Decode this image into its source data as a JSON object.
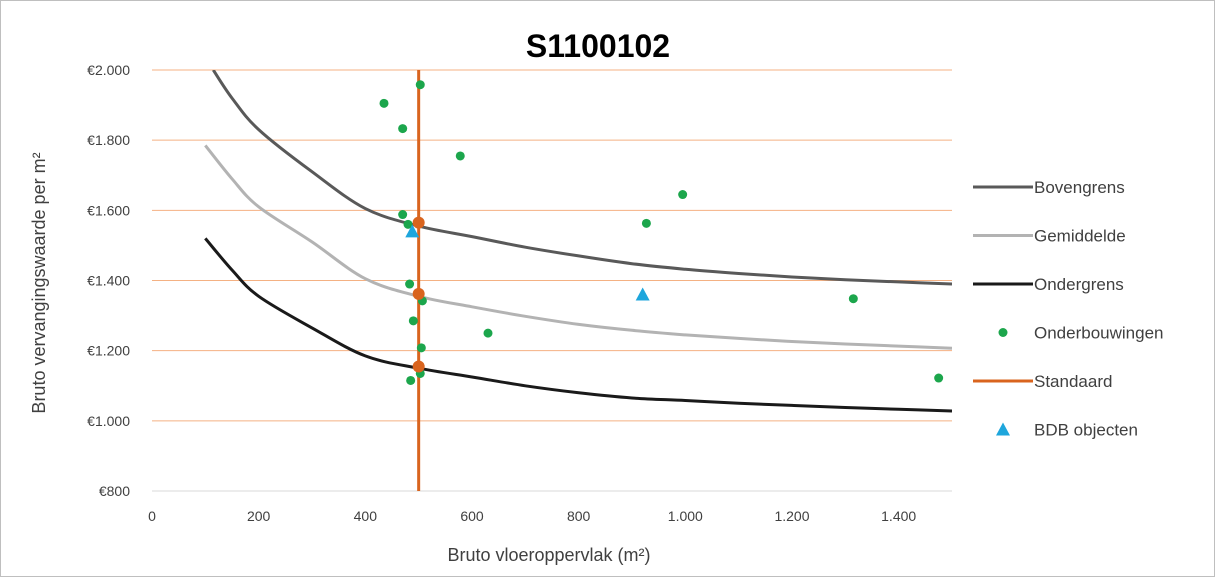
{
  "chart_data": {
    "type": "scatter",
    "title": "S1100102",
    "xlabel": "Bruto vloeroppervlak (m²)",
    "ylabel": "Bruto vervangingswaarde per m²",
    "xlim": [
      0,
      1500
    ],
    "ylim": [
      800,
      2000
    ],
    "x_ticks": [
      0,
      200,
      400,
      600,
      800,
      1000,
      1200,
      1400
    ],
    "x_tick_labels": [
      "0",
      "200",
      "400",
      "600",
      "800",
      "1.000",
      "1.200",
      "1.400"
    ],
    "y_ticks": [
      800,
      1000,
      1200,
      1400,
      1600,
      1800,
      2000
    ],
    "y_tick_labels": [
      "€800",
      "€1.000",
      "€1.200",
      "€1.400",
      "€1.600",
      "€1.800",
      "€2.000"
    ],
    "grid": "horizontal",
    "legend_position": "right",
    "series": [
      {
        "name": "Bovengrens",
        "kind": "line",
        "color": "#595959",
        "points": [
          [
            115,
            2000
          ],
          [
            150,
            1920
          ],
          [
            200,
            1830
          ],
          [
            300,
            1710
          ],
          [
            400,
            1605
          ],
          [
            500,
            1555
          ],
          [
            600,
            1525
          ],
          [
            700,
            1495
          ],
          [
            800,
            1470
          ],
          [
            900,
            1448
          ],
          [
            1000,
            1432
          ],
          [
            1100,
            1420
          ],
          [
            1200,
            1410
          ],
          [
            1300,
            1402
          ],
          [
            1400,
            1396
          ],
          [
            1500,
            1390
          ]
        ]
      },
      {
        "name": "Gemiddelde",
        "kind": "line",
        "color": "#b3b3b3",
        "points": [
          [
            100,
            1785
          ],
          [
            150,
            1690
          ],
          [
            200,
            1610
          ],
          [
            300,
            1510
          ],
          [
            400,
            1405
          ],
          [
            500,
            1355
          ],
          [
            600,
            1325
          ],
          [
            700,
            1298
          ],
          [
            800,
            1275
          ],
          [
            900,
            1258
          ],
          [
            1000,
            1245
          ],
          [
            1100,
            1235
          ],
          [
            1200,
            1226
          ],
          [
            1300,
            1219
          ],
          [
            1400,
            1213
          ],
          [
            1500,
            1207
          ]
        ]
      },
      {
        "name": "Ondergrens",
        "kind": "line",
        "color": "#1a1a1a",
        "points": [
          [
            100,
            1520
          ],
          [
            150,
            1430
          ],
          [
            200,
            1355
          ],
          [
            300,
            1265
          ],
          [
            400,
            1185
          ],
          [
            500,
            1150
          ],
          [
            600,
            1125
          ],
          [
            700,
            1100
          ],
          [
            800,
            1080
          ],
          [
            900,
            1065
          ],
          [
            1000,
            1058
          ],
          [
            1100,
            1050
          ],
          [
            1200,
            1044
          ],
          [
            1300,
            1038
          ],
          [
            1400,
            1033
          ],
          [
            1500,
            1028
          ]
        ]
      },
      {
        "name": "Onderbouwingen",
        "kind": "scatter",
        "marker": "circle",
        "color": "#1ca64c",
        "points": [
          [
            435,
            1905
          ],
          [
            503,
            1958
          ],
          [
            470,
            1833
          ],
          [
            578,
            1755
          ],
          [
            470,
            1588
          ],
          [
            480,
            1560
          ],
          [
            483,
            1390
          ],
          [
            507,
            1342
          ],
          [
            490,
            1285
          ],
          [
            505,
            1208
          ],
          [
            630,
            1250
          ],
          [
            485,
            1115
          ],
          [
            503,
            1135
          ],
          [
            927,
            1563
          ],
          [
            995,
            1645
          ],
          [
            1315,
            1348
          ],
          [
            1475,
            1122
          ]
        ]
      },
      {
        "name": "Standaard",
        "kind": "vline",
        "color": "#d9641e",
        "x": 500,
        "markers": [
          [
            500,
            1565
          ],
          [
            500,
            1362
          ],
          [
            500,
            1155
          ]
        ]
      },
      {
        "name": "BDB objecten",
        "kind": "scatter",
        "marker": "triangle",
        "color": "#1ea6dc",
        "points": [
          [
            488,
            1540
          ],
          [
            920,
            1360
          ]
        ]
      }
    ]
  }
}
